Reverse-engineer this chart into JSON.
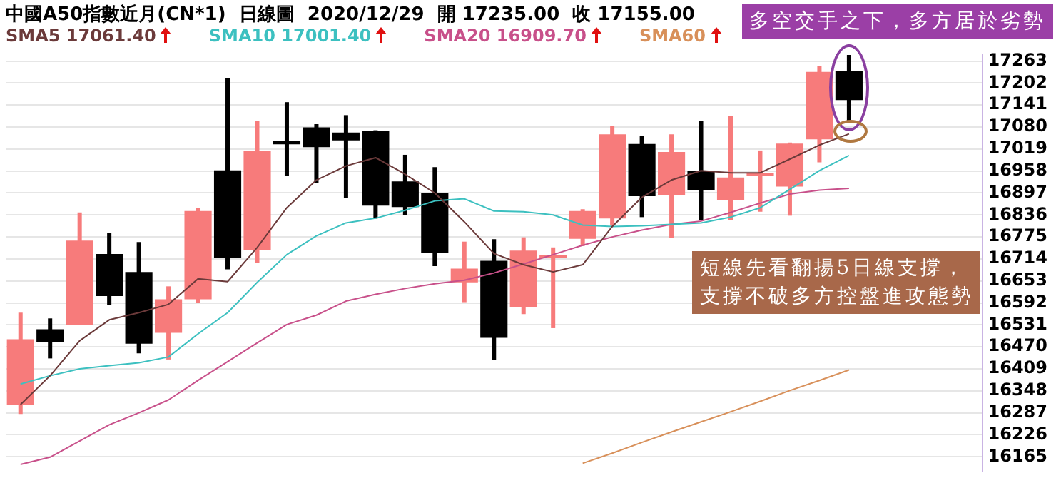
{
  "chart_data": {
    "type": "candlestick",
    "title": "中國A50指數近月(CN*1)",
    "subtitle": "日線圖  2020/12/29  開 17235.00  收 17155.00",
    "categories": [
      null,
      null,
      null,
      null,
      null,
      null,
      null,
      null,
      null,
      null,
      null,
      null,
      null,
      null,
      null,
      null,
      null,
      null,
      null,
      null,
      null,
      null,
      null,
      null,
      null,
      null,
      null,
      null,
      null,
      null,
      null,
      null,
      null
    ],
    "ohlc": [
      [
        16310,
        16565,
        16284,
        16491
      ],
      [
        16519,
        16549,
        16438,
        16483
      ],
      [
        16532,
        16843,
        16530,
        16765
      ],
      [
        16728,
        16787,
        16587,
        16611
      ],
      [
        16678,
        16761,
        16452,
        16479
      ],
      [
        16509,
        16638,
        16435,
        16602
      ],
      [
        16602,
        16856,
        16591,
        16847
      ],
      [
        16960,
        17215,
        16685,
        16717
      ],
      [
        16739,
        17097,
        16703,
        17013
      ],
      [
        17042,
        17149,
        16944,
        17032
      ],
      [
        17079,
        17088,
        16925,
        17024
      ],
      [
        17065,
        17113,
        16883,
        17043
      ],
      [
        17069,
        17071,
        16826,
        16862
      ],
      [
        16929,
        17003,
        16836,
        16858
      ],
      [
        16897,
        16969,
        16694,
        16730
      ],
      [
        16649,
        16762,
        16594,
        16687
      ],
      [
        16709,
        16769,
        16433,
        16495
      ],
      [
        16580,
        16774,
        16561,
        16737
      ],
      [
        16716,
        16746,
        16522,
        16725
      ],
      [
        16770,
        16852,
        16750,
        16847
      ],
      [
        16826,
        17082,
        16806,
        17060
      ],
      [
        17033,
        17056,
        16830,
        16888
      ],
      [
        16891,
        17060,
        16772,
        17011
      ],
      [
        16958,
        17097,
        16823,
        16905
      ],
      [
        16878,
        17110,
        16823,
        16940
      ],
      [
        16944,
        17015,
        16845,
        16953
      ],
      [
        16915,
        17037,
        16834,
        17034
      ],
      [
        17046,
        17250,
        16982,
        17233
      ],
      [
        17235,
        17280,
        17092,
        17155
      ],
      null,
      null,
      null,
      null
    ],
    "colors": [
      "#f77b7b",
      "#000000",
      "#f77b7b",
      "#000000",
      "#000000",
      "#f77b7b",
      "#f77b7b",
      "#000000",
      "#f77b7b",
      "#000000",
      "#000000",
      "#000000",
      "#000000",
      "#000000",
      "#000000",
      "#f77b7b",
      "#000000",
      "#f77b7b",
      "#f77b7b",
      "#f77b7b",
      "#f77b7b",
      "#000000",
      "#f77b7b",
      "#000000",
      "#f77b7b",
      "#f77b7b",
      "#f77b7b",
      "#f77b7b",
      "#000000",
      null,
      null,
      null,
      null
    ],
    "series": [
      {
        "name": "SMA5 17061.40",
        "type": "line",
        "color": "#6b3a3a",
        "values": [
          16310,
          16390,
          16487,
          16545,
          16565,
          16588,
          16659,
          16651,
          16746,
          16856,
          16933,
          16972,
          16995,
          16949,
          16897,
          16817,
          16729,
          16698,
          16678,
          16698,
          16804,
          16885,
          16933,
          16959,
          16953,
          16953,
          16991,
          17030,
          17061,
          null,
          null,
          null,
          null
        ]
      },
      {
        "name": "SMA10 17001.40",
        "type": "line",
        "color": "#3cc0c0",
        "values": [
          16367,
          16390,
          16409,
          16418,
          16426,
          16442,
          16506,
          16565,
          16649,
          16726,
          16778,
          16814,
          16827,
          16849,
          16875,
          16881,
          16847,
          16845,
          16836,
          16808,
          16804,
          16806,
          16810,
          16814,
          16830,
          16856,
          16907,
          16959,
          17001,
          null,
          null,
          null,
          null
        ]
      },
      {
        "name": "SMA20 16909.70",
        "type": "line",
        "color": "#c8508a",
        "values": [
          16144,
          16164,
          16209,
          16254,
          16287,
          16323,
          16377,
          16429,
          16481,
          16532,
          16558,
          16597,
          16616,
          16632,
          16645,
          16655,
          16675,
          16700,
          16726,
          16752,
          16775,
          16794,
          16810,
          16819,
          16843,
          16869,
          16894,
          16905,
          16910,
          null,
          null,
          null,
          null
        ]
      },
      {
        "name": "SMA60",
        "type": "line",
        "color": "#d8905a",
        "values": [
          null,
          null,
          null,
          null,
          null,
          null,
          null,
          null,
          null,
          null,
          null,
          null,
          null,
          null,
          null,
          null,
          null,
          null,
          null,
          16147,
          16175,
          16205,
          16234,
          16262,
          16290,
          16319,
          16349,
          16377,
          16406,
          null,
          null,
          null,
          null
        ]
      }
    ],
    "ylim": [
      16126,
      17282
    ],
    "yticks": [
      16165,
      16226,
      16287,
      16348,
      16409,
      16470,
      16531,
      16592,
      16653,
      16714,
      16775,
      16836,
      16897,
      16958,
      17019,
      17080,
      17141,
      17202,
      17263
    ],
    "grid": "y",
    "tick_labels": "y",
    "legend": "top left",
    "marker": "none",
    "annotations": [
      "多空交手之下，多方居於劣勢",
      "短線先看翻揚5日線支撐，支撐不破多方控盤進攻態勢"
    ]
  }
}
